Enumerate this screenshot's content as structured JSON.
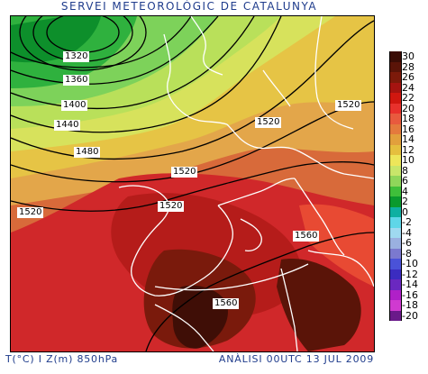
{
  "header": {
    "title": "SERVEI METEOROLÒGIC DE CATALUNYA"
  },
  "footer": {
    "variables": "T(°C) I Z(m) 850hPa",
    "analysis": "ANÀLISI 00UTC 13 JUL 2009"
  },
  "legend": {
    "levels": [
      "30",
      "28",
      "26",
      "24",
      "22",
      "20",
      "18",
      "16",
      "14",
      "12",
      "10",
      "8",
      "6",
      "4",
      "2",
      "0",
      "-2",
      "-4",
      "-6",
      "-8",
      "-10",
      "-12",
      "-14",
      "-16",
      "-18",
      "-20"
    ],
    "colors": [
      "#3b0d06",
      "#5a1408",
      "#7c1a0a",
      "#a51410",
      "#d0170f",
      "#e8312c",
      "#e85a3e",
      "#e47a3d",
      "#e2a03c",
      "#e5bf3e",
      "#ede65a",
      "#c8e66a",
      "#8fd65a",
      "#3fbf3a",
      "#0a9a2e",
      "#0fb0a2",
      "#5fd6e8",
      "#9fd9f0",
      "#9ab0e0",
      "#7b79cf",
      "#4a52d8",
      "#3b2cc0",
      "#6a28c0",
      "#b020c8",
      "#d03ad0",
      "#6a1a8a"
    ]
  },
  "map": {
    "isohypse_labels": [
      "1320",
      "1360",
      "1400",
      "1440",
      "1480",
      "1520",
      "1520",
      "1520",
      "1520",
      "1520",
      "1560",
      "1560"
    ]
  }
}
